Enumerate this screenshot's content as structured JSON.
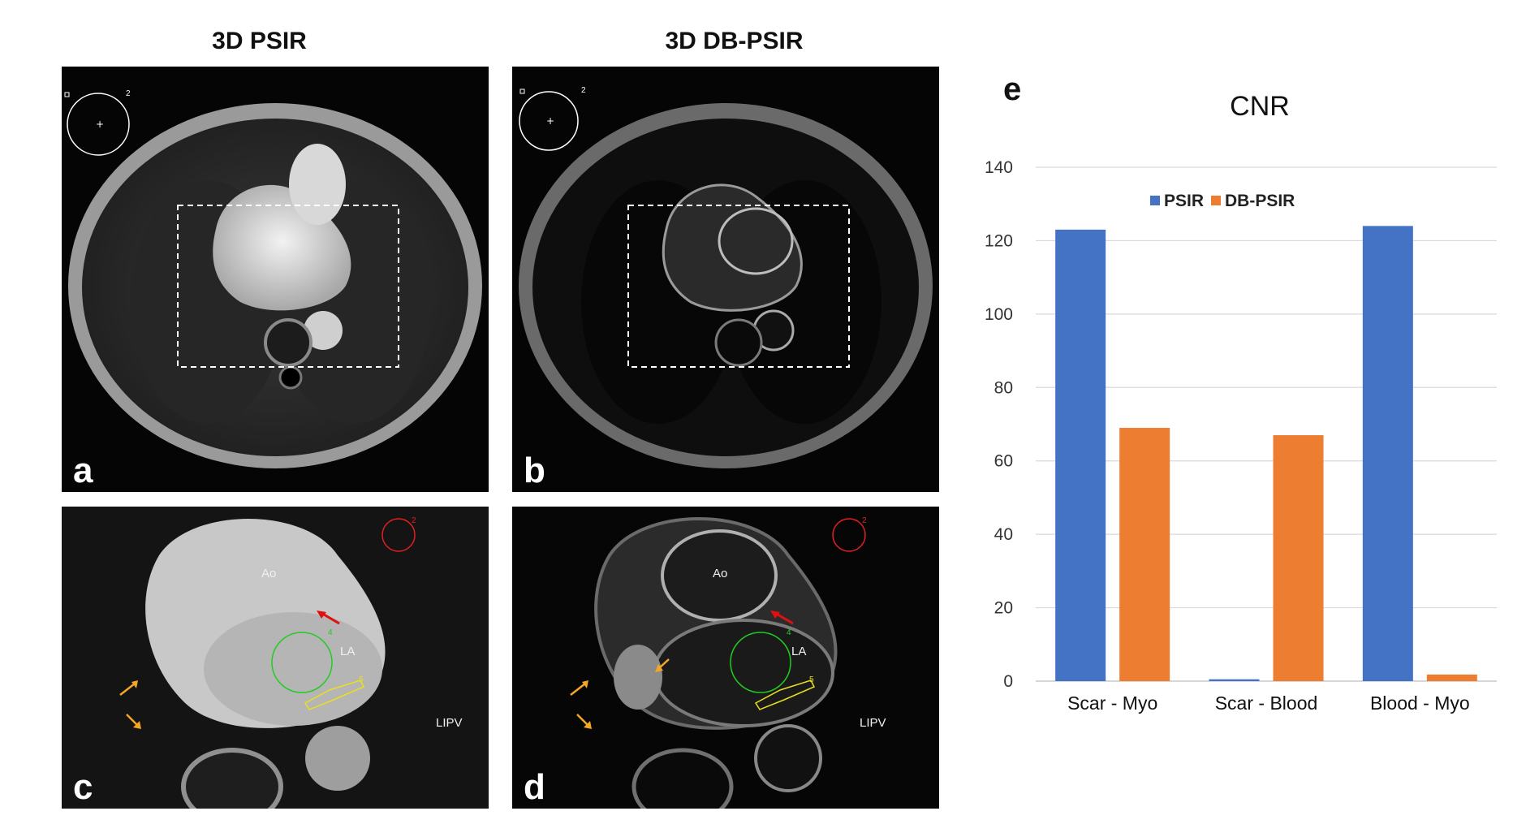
{
  "columns": {
    "left_title": "3D PSIR",
    "right_title": "3D DB-PSIR"
  },
  "panels": {
    "a": {
      "label": "a",
      "roi_number": "2"
    },
    "b": {
      "label": "b",
      "roi_number": "2"
    },
    "c": {
      "label": "c",
      "roi_red_number": "2",
      "roi_green_number": "4",
      "roi_yellow_number": "5",
      "ao": "Ao",
      "la": "LA",
      "lipv": "LIPV"
    },
    "d": {
      "label": "d",
      "roi_red_number": "2",
      "roi_green_number": "4",
      "roi_yellow_number": "5",
      "ao": "Ao",
      "la": "LA",
      "lipv": "LIPV"
    }
  },
  "chart_panel_label": "e",
  "colors": {
    "psir": "#4472C4",
    "db_psir": "#ED7D31",
    "grid": "#d9d9d9",
    "roi_red": "#e02020",
    "roi_green": "#22cc22",
    "roi_yellow": "#e8e020",
    "arrow_red": "#e01010",
    "arrow_orange": "#f5a623"
  },
  "chart_data": {
    "type": "bar",
    "title": "CNR",
    "categories": [
      "Scar - Myo",
      "Scar - Blood",
      "Blood - Myo"
    ],
    "series": [
      {
        "name": "PSIR",
        "values": [
          123,
          0.5,
          124
        ]
      },
      {
        "name": "DB-PSIR",
        "values": [
          69,
          67,
          1.8
        ]
      }
    ],
    "ylim": [
      0,
      140
    ],
    "yticks": [
      0,
      20,
      40,
      60,
      80,
      100,
      120,
      140
    ],
    "grid": true,
    "legend": "top-center",
    "xlabel": "",
    "ylabel": ""
  }
}
